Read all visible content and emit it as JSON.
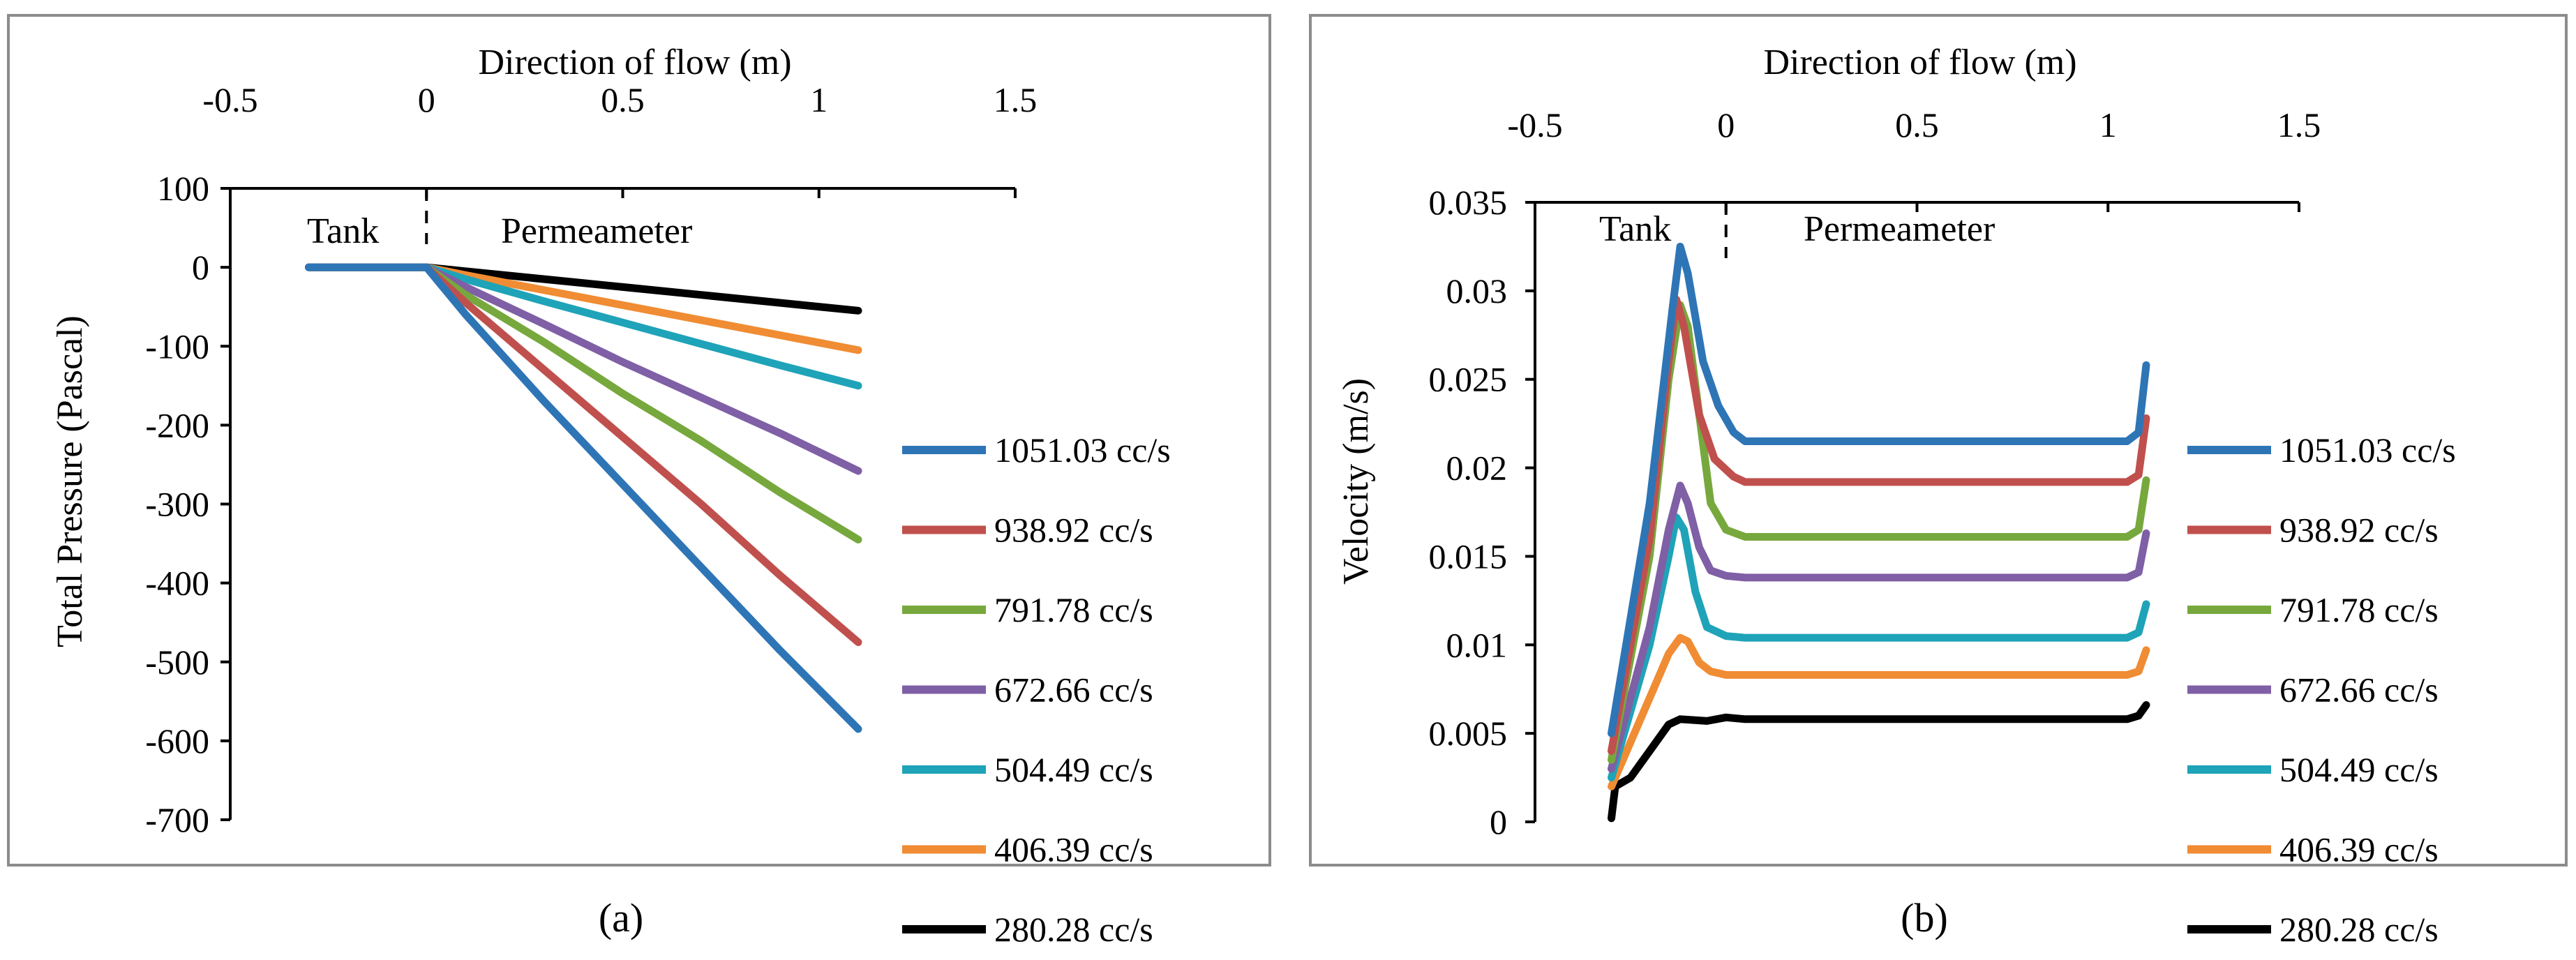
{
  "figure": {
    "panel_labels": [
      "(a)",
      "(b)"
    ]
  },
  "chart_data": [
    {
      "type": "line",
      "panel": "(a)",
      "title": "",
      "x_top_label": "Direction of flow (m)",
      "ylabel": "Total Pressure (Pascal)",
      "xlim": [
        -0.5,
        1.5
      ],
      "x_ticks": [
        -0.5,
        0,
        0.5,
        1,
        1.5
      ],
      "x_tick_labels": [
        "-0.5",
        "0",
        "0.5",
        "1",
        "1.5"
      ],
      "ylim": [
        -700,
        100
      ],
      "y_ticks": [
        100,
        0,
        -100,
        -200,
        -300,
        -400,
        -500,
        -600,
        -700
      ],
      "y_tick_labels": [
        "100",
        "0",
        "-100",
        "-200",
        "-300",
        "-400",
        "-500",
        "-600",
        "-700"
      ],
      "annotations": {
        "left": "Tank",
        "right": "Permeameter"
      },
      "divider_x": 0,
      "legend_position": "right",
      "series": [
        {
          "name": "1051.03 cc/s",
          "color": "#2e75b6",
          "points": [
            [
              -0.3,
              0
            ],
            [
              0,
              0
            ],
            [
              0.1,
              -60
            ],
            [
              0.3,
              -170
            ],
            [
              0.5,
              -275
            ],
            [
              0.7,
              -380
            ],
            [
              0.9,
              -485
            ],
            [
              1.1,
              -585
            ]
          ]
        },
        {
          "name": "938.92 cc/s",
          "color": "#c0504d",
          "points": [
            [
              -0.3,
              0
            ],
            [
              0,
              0
            ],
            [
              0.1,
              -45
            ],
            [
              0.3,
              -130
            ],
            [
              0.5,
              -215
            ],
            [
              0.7,
              -300
            ],
            [
              0.9,
              -390
            ],
            [
              1.1,
              -475
            ]
          ]
        },
        {
          "name": "791.78 cc/s",
          "color": "#77a83d",
          "points": [
            [
              -0.3,
              0
            ],
            [
              0,
              0
            ],
            [
              0.1,
              -35
            ],
            [
              0.3,
              -95
            ],
            [
              0.5,
              -160
            ],
            [
              0.7,
              -220
            ],
            [
              0.9,
              -285
            ],
            [
              1.1,
              -345
            ]
          ]
        },
        {
          "name": "672.66 cc/s",
          "color": "#7f5fa5",
          "points": [
            [
              -0.3,
              0
            ],
            [
              0,
              0
            ],
            [
              0.1,
              -25
            ],
            [
              0.3,
              -72
            ],
            [
              0.5,
              -120
            ],
            [
              0.7,
              -165
            ],
            [
              0.9,
              -210
            ],
            [
              1.1,
              -258
            ]
          ]
        },
        {
          "name": "504.49 cc/s",
          "color": "#1fa3b8",
          "points": [
            [
              -0.3,
              0
            ],
            [
              0,
              0
            ],
            [
              0.1,
              -15
            ],
            [
              0.3,
              -43
            ],
            [
              0.5,
              -70
            ],
            [
              0.7,
              -97
            ],
            [
              0.9,
              -124
            ],
            [
              1.1,
              -150
            ]
          ]
        },
        {
          "name": "406.39 cc/s",
          "color": "#f08c33",
          "points": [
            [
              -0.3,
              0
            ],
            [
              0,
              0
            ],
            [
              0.1,
              -10
            ],
            [
              0.3,
              -29
            ],
            [
              0.5,
              -48
            ],
            [
              0.7,
              -67
            ],
            [
              0.9,
              -86
            ],
            [
              1.1,
              -105
            ]
          ]
        },
        {
          "name": "280.28 cc/s",
          "color": "#000000",
          "points": [
            [
              -0.3,
              0
            ],
            [
              0,
              0
            ],
            [
              0.1,
              -5
            ],
            [
              0.3,
              -15
            ],
            [
              0.5,
              -25
            ],
            [
              0.7,
              -35
            ],
            [
              0.9,
              -45
            ],
            [
              1.1,
              -55
            ]
          ]
        }
      ]
    },
    {
      "type": "line",
      "panel": "(b)",
      "title": "",
      "x_top_label": "Direction of flow (m)",
      "ylabel": "Velocity (m/s)",
      "xlim": [
        -0.5,
        1.5
      ],
      "x_ticks": [
        -0.5,
        0,
        0.5,
        1,
        1.5
      ],
      "x_tick_labels": [
        "-0.5",
        "0",
        "0.5",
        "1",
        "1.5"
      ],
      "ylim": [
        0,
        0.035
      ],
      "y_ticks": [
        0.035,
        0.03,
        0.025,
        0.02,
        0.015,
        0.01,
        0.005,
        0
      ],
      "y_tick_labels": [
        "0.035",
        "0.03",
        "0.025",
        "0.02",
        "0.015",
        "0.01",
        "0.005",
        "0"
      ],
      "annotations": {
        "left": "Tank",
        "right": "Permeameter"
      },
      "divider_x": 0,
      "legend_position": "right",
      "series": [
        {
          "name": "1051.03 cc/s",
          "color": "#2e75b6",
          "points": [
            [
              -0.3,
              0.005
            ],
            [
              -0.2,
              0.018
            ],
            [
              -0.14,
              0.029
            ],
            [
              -0.12,
              0.0325
            ],
            [
              -0.1,
              0.031
            ],
            [
              -0.06,
              0.026
            ],
            [
              -0.02,
              0.0235
            ],
            [
              0.02,
              0.022
            ],
            [
              0.05,
              0.0215
            ],
            [
              1.05,
              0.0215
            ],
            [
              1.08,
              0.022
            ],
            [
              1.1,
              0.0258
            ]
          ]
        },
        {
          "name": "938.92 cc/s",
          "color": "#c0504d",
          "points": [
            [
              -0.3,
              0.004
            ],
            [
              -0.2,
              0.016
            ],
            [
              -0.15,
              0.026
            ],
            [
              -0.13,
              0.0295
            ],
            [
              -0.11,
              0.028
            ],
            [
              -0.07,
              0.023
            ],
            [
              -0.03,
              0.0205
            ],
            [
              0.02,
              0.0195
            ],
            [
              0.05,
              0.0192
            ],
            [
              1.05,
              0.0192
            ],
            [
              1.08,
              0.0196
            ],
            [
              1.1,
              0.0228
            ]
          ]
        },
        {
          "name": "791.78 cc/s",
          "color": "#77a83d",
          "points": [
            [
              -0.3,
              0.0035
            ],
            [
              -0.2,
              0.015
            ],
            [
              -0.15,
              0.025
            ],
            [
              -0.12,
              0.0292
            ],
            [
              -0.1,
              0.028
            ],
            [
              -0.07,
              0.023
            ],
            [
              -0.04,
              0.018
            ],
            [
              0,
              0.0165
            ],
            [
              0.05,
              0.0161
            ],
            [
              1.05,
              0.0161
            ],
            [
              1.08,
              0.0165
            ],
            [
              1.1,
              0.0193
            ]
          ]
        },
        {
          "name": "672.66 cc/s",
          "color": "#7f5fa5",
          "points": [
            [
              -0.3,
              0.003
            ],
            [
              -0.2,
              0.011
            ],
            [
              -0.15,
              0.0165
            ],
            [
              -0.12,
              0.019
            ],
            [
              -0.1,
              0.018
            ],
            [
              -0.07,
              0.0155
            ],
            [
              -0.04,
              0.0142
            ],
            [
              0,
              0.0139
            ],
            [
              0.05,
              0.0138
            ],
            [
              1.05,
              0.0138
            ],
            [
              1.08,
              0.0141
            ],
            [
              1.1,
              0.0163
            ]
          ]
        },
        {
          "name": "504.49 cc/s",
          "color": "#1fa3b8",
          "points": [
            [
              -0.3,
              0.0025
            ],
            [
              -0.2,
              0.01
            ],
            [
              -0.15,
              0.015
            ],
            [
              -0.13,
              0.0172
            ],
            [
              -0.11,
              0.0165
            ],
            [
              -0.08,
              0.013
            ],
            [
              -0.05,
              0.011
            ],
            [
              0,
              0.0105
            ],
            [
              0.05,
              0.0104
            ],
            [
              1.05,
              0.0104
            ],
            [
              1.08,
              0.0107
            ],
            [
              1.1,
              0.0123
            ]
          ]
        },
        {
          "name": "406.39 cc/s",
          "color": "#f08c33",
          "points": [
            [
              -0.3,
              0.002
            ],
            [
              -0.2,
              0.007
            ],
            [
              -0.15,
              0.0095
            ],
            [
              -0.12,
              0.0104
            ],
            [
              -0.1,
              0.0102
            ],
            [
              -0.07,
              0.009
            ],
            [
              -0.04,
              0.0085
            ],
            [
              0,
              0.0083
            ],
            [
              0.05,
              0.0083
            ],
            [
              1.05,
              0.0083
            ],
            [
              1.08,
              0.0085
            ],
            [
              1.1,
              0.0097
            ]
          ]
        },
        {
          "name": "280.28 cc/s",
          "color": "#000000",
          "points": [
            [
              -0.3,
              0.0002
            ],
            [
              -0.29,
              0.002
            ],
            [
              -0.25,
              0.0025
            ],
            [
              -0.2,
              0.004
            ],
            [
              -0.15,
              0.0055
            ],
            [
              -0.12,
              0.0058
            ],
            [
              -0.05,
              0.0057
            ],
            [
              0,
              0.0059
            ],
            [
              0.05,
              0.0058
            ],
            [
              1.05,
              0.0058
            ],
            [
              1.08,
              0.006
            ],
            [
              1.1,
              0.0066
            ]
          ]
        }
      ]
    }
  ]
}
